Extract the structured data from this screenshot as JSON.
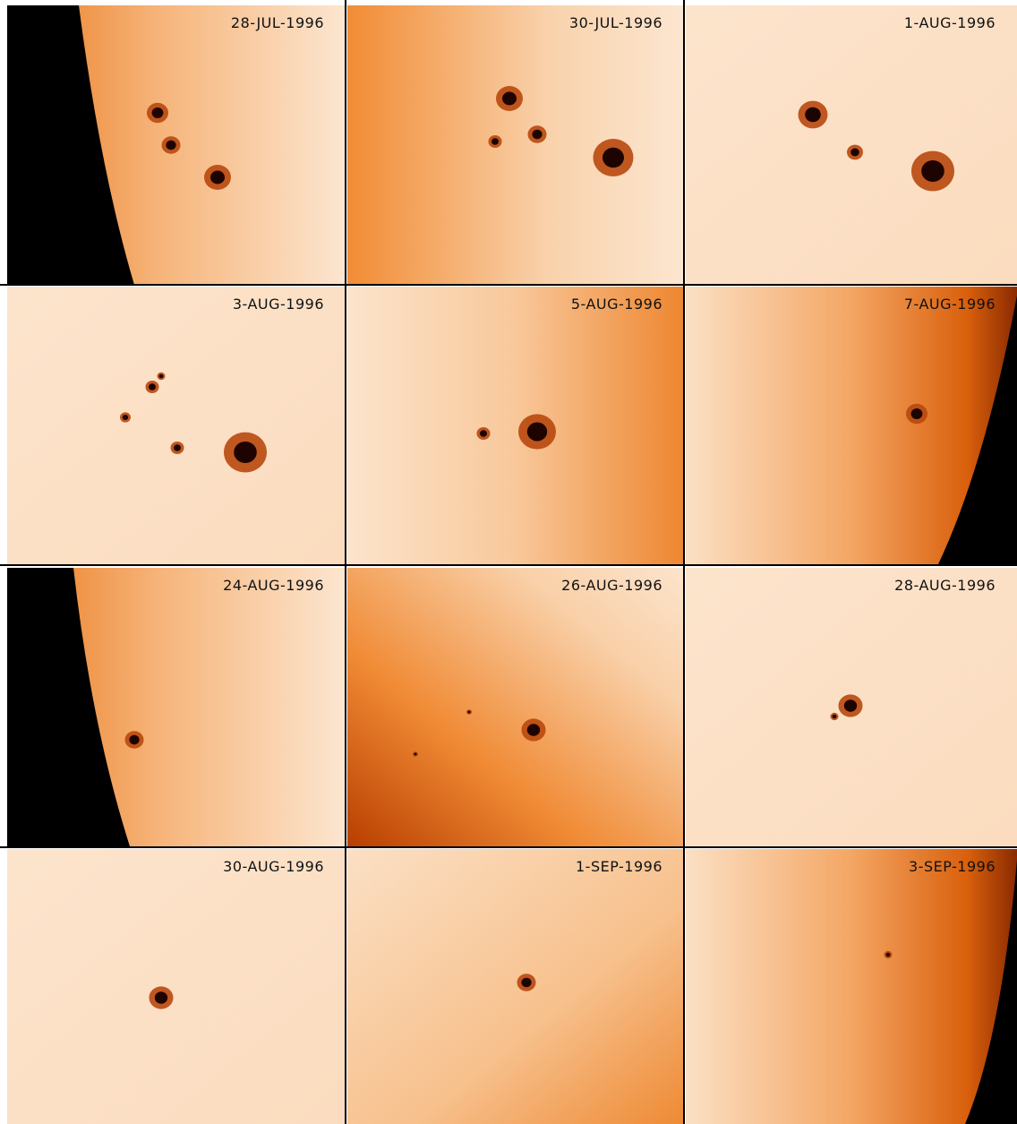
{
  "panels": [
    {
      "label": "28-JUL-1996"
    },
    {
      "label": "30-JUL-1996"
    },
    {
      "label": "1-AUG-1996"
    },
    {
      "label": "3-AUG-1996"
    },
    {
      "label": "5-AUG-1996"
    },
    {
      "label": "7-AUG-1996"
    },
    {
      "label": "24-AUG-1996"
    },
    {
      "label": "26-AUG-1996"
    },
    {
      "label": "28-AUG-1996"
    },
    {
      "label": "30-AUG-1996"
    },
    {
      "label": "1-SEP-1996"
    },
    {
      "label": "3-SEP-1996"
    }
  ]
}
